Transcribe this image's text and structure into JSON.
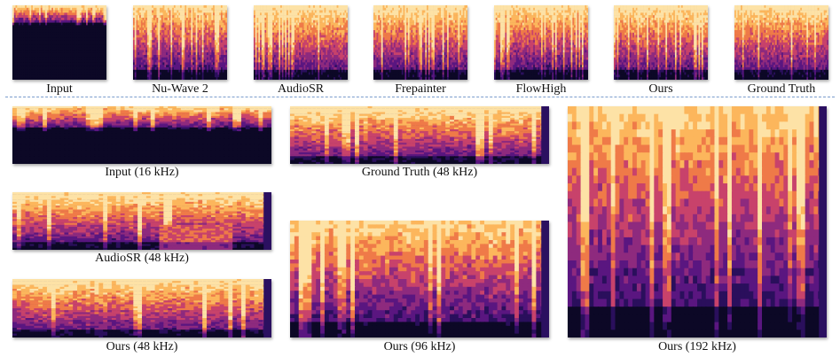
{
  "top_row": [
    {
      "key": "input",
      "caption": "Input"
    },
    {
      "key": "nuwave2",
      "caption": "Nu-Wave 2"
    },
    {
      "key": "audiosr",
      "caption": "AudioSR"
    },
    {
      "key": "frepainter",
      "caption": "Frepainter"
    },
    {
      "key": "flowhigh",
      "caption": "FlowHigh"
    },
    {
      "key": "ours",
      "caption": "Ours"
    },
    {
      "key": "gt",
      "caption": "Ground Truth"
    }
  ],
  "bottom": {
    "input16": {
      "caption": "Input (16 kHz)"
    },
    "gt48": {
      "caption": "Ground Truth (48 kHz)"
    },
    "audiosr48": {
      "caption": "AudioSR (48 kHz)"
    },
    "ours48": {
      "caption": "Ours (48 kHz)"
    },
    "ours96": {
      "caption": "Ours (96 kHz)"
    },
    "ours192": {
      "caption": "Ours (192 kHz)"
    }
  },
  "colors": {
    "colormap": [
      "#0c0826",
      "#2a0f5c",
      "#5a1680",
      "#8e2a7e",
      "#c8426b",
      "#ef7a48",
      "#fcb65c",
      "#fde2a6"
    ],
    "separator": "#7a9ccc"
  }
}
